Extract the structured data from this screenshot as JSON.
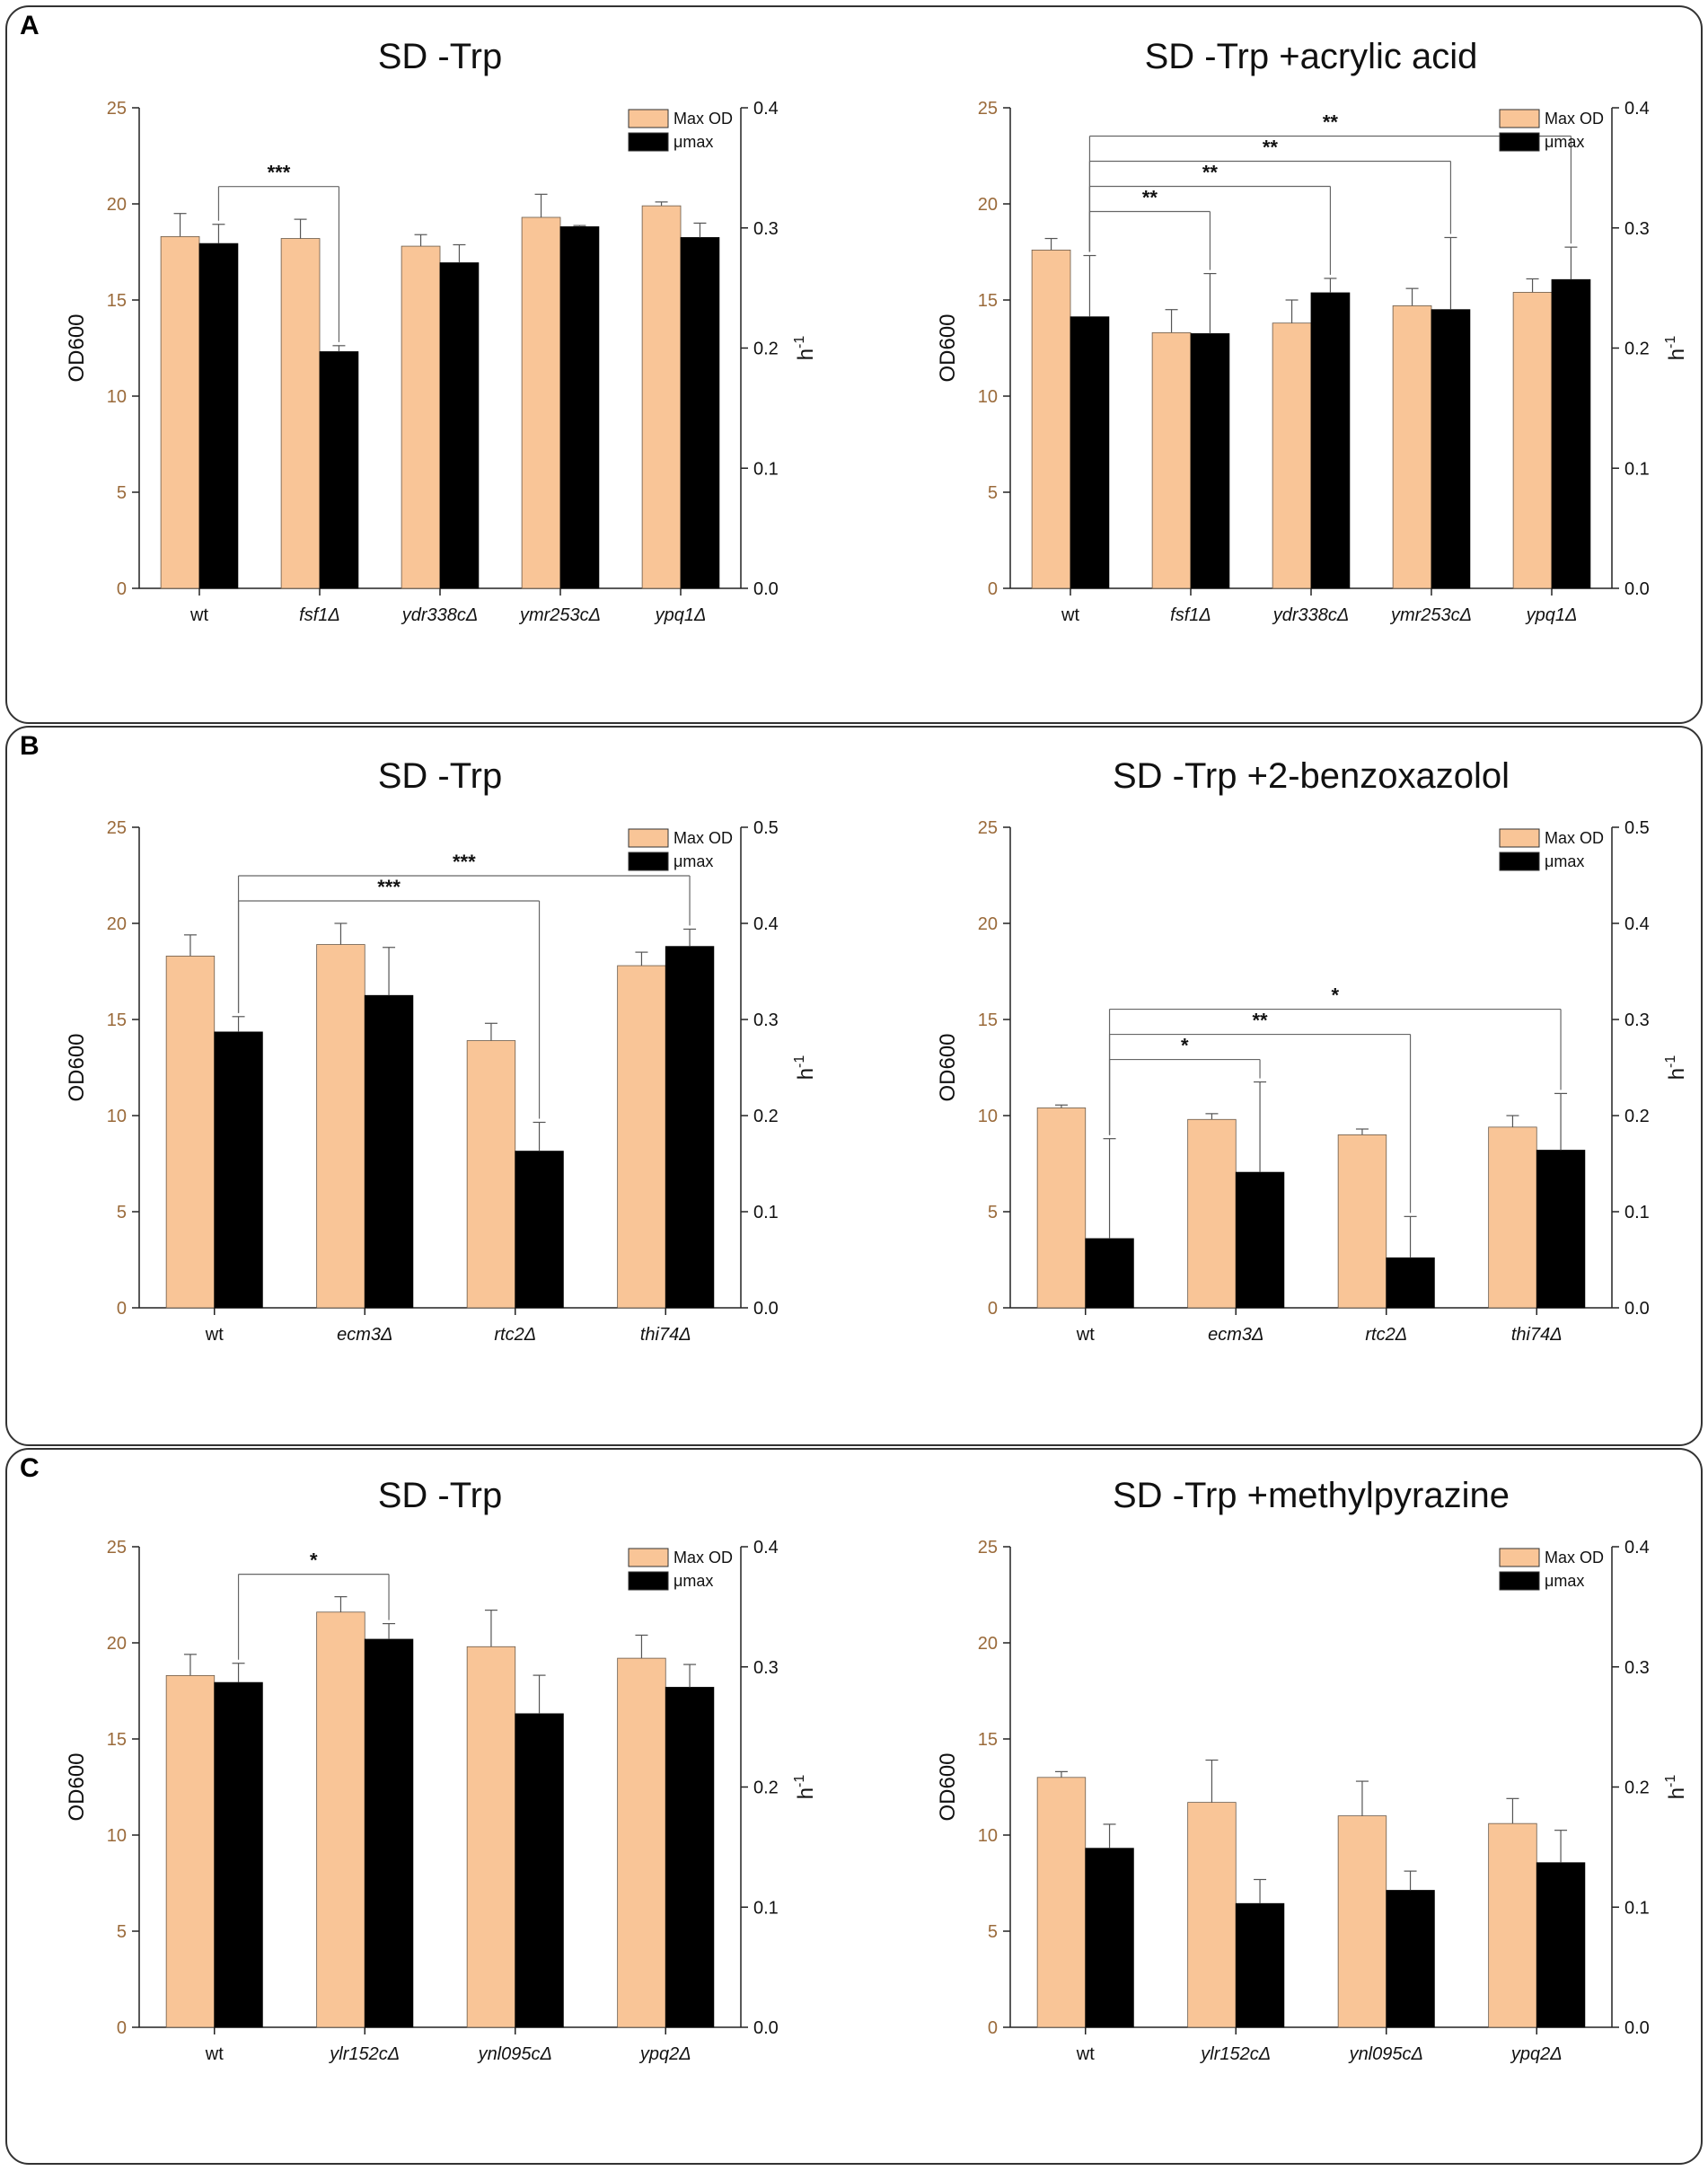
{
  "colors": {
    "max_od": "#f9c597",
    "mu_max": "#000000",
    "left_axis": "#9a6a3a",
    "frame": "#333333"
  },
  "panels": [
    "A",
    "B",
    "C"
  ],
  "chart_data": [
    {
      "type": "bar",
      "panel": "A",
      "title": "SD -Trp",
      "categories": [
        "wt",
        "fsf1Δ",
        "ydr338cΔ",
        "ymr253cΔ",
        "ypq1Δ"
      ],
      "italic_categories": [
        false,
        true,
        true,
        true,
        true
      ],
      "ylabel": "OD600",
      "ylabel_right": "h",
      "ylabel_right_exp": "-1",
      "ylim": [
        0,
        25
      ],
      "yticks": [
        "0",
        "5",
        "10",
        "15",
        "20",
        "25"
      ],
      "y2lim": [
        0,
        0.4
      ],
      "y2ticks": [
        "0.0",
        "0.1",
        "0.2",
        "0.3",
        "0.4"
      ],
      "legend": [
        "Max OD",
        "μmax"
      ],
      "series": [
        {
          "name": "Max OD",
          "axis": "left",
          "values": [
            18.3,
            18.2,
            17.8,
            19.3,
            19.9
          ],
          "errors": [
            1.2,
            1.0,
            0.6,
            1.2,
            0.2
          ]
        },
        {
          "name": "μmax",
          "axis": "right",
          "values": [
            0.287,
            0.197,
            0.271,
            0.301,
            0.292
          ],
          "errors": [
            0.016,
            0.005,
            0.015,
            0.001,
            0.012
          ]
        }
      ],
      "significance": [
        {
          "from": 0,
          "to": 1,
          "label": "***"
        }
      ]
    },
    {
      "type": "bar",
      "panel": "A",
      "title": "SD -Trp +acrylic acid",
      "categories": [
        "wt",
        "fsf1Δ",
        "ydr338cΔ",
        "ymr253cΔ",
        "ypq1Δ"
      ],
      "italic_categories": [
        false,
        true,
        true,
        true,
        true
      ],
      "ylabel": "OD600",
      "ylabel_right": "h",
      "ylabel_right_exp": "-1",
      "ylim": [
        0,
        25
      ],
      "yticks": [
        "0",
        "5",
        "10",
        "15",
        "20",
        "25"
      ],
      "y2lim": [
        0,
        0.4
      ],
      "y2ticks": [
        "0.0",
        "0.1",
        "0.2",
        "0.3",
        "0.4"
      ],
      "legend": [
        "Max OD",
        "μmax"
      ],
      "series": [
        {
          "name": "Max OD",
          "axis": "left",
          "values": [
            17.6,
            13.3,
            13.8,
            14.7,
            15.4
          ],
          "errors": [
            0.6,
            1.2,
            1.2,
            0.9,
            0.7
          ]
        },
        {
          "name": "μmax",
          "axis": "right",
          "values": [
            0.226,
            0.212,
            0.246,
            0.232,
            0.257
          ],
          "errors": [
            0.051,
            0.05,
            0.012,
            0.06,
            0.027
          ]
        }
      ],
      "significance": [
        {
          "from": 0,
          "to": 1,
          "label": "**"
        },
        {
          "from": 0,
          "to": 2,
          "label": "**"
        },
        {
          "from": 0,
          "to": 4,
          "label": "**"
        },
        {
          "from": 0,
          "to": 3,
          "label": "**"
        }
      ]
    },
    {
      "type": "bar",
      "panel": "B",
      "title": "SD -Trp",
      "categories": [
        "wt",
        "ecm3Δ",
        "rtc2Δ",
        "thi74Δ"
      ],
      "italic_categories": [
        false,
        true,
        true,
        true
      ],
      "ylabel": "OD600",
      "ylabel_right": "h",
      "ylabel_right_exp": "-1",
      "ylim": [
        0,
        25
      ],
      "yticks": [
        "0",
        "5",
        "10",
        "15",
        "20",
        "25"
      ],
      "y2lim": [
        0,
        0.5
      ],
      "y2ticks": [
        "0.0",
        "0.1",
        "0.2",
        "0.3",
        "0.4",
        "0.5"
      ],
      "legend": [
        "Max OD",
        "μmax"
      ],
      "series": [
        {
          "name": "Max OD",
          "axis": "left",
          "values": [
            18.3,
            18.9,
            13.9,
            17.8
          ],
          "errors": [
            1.1,
            1.1,
            0.9,
            0.7
          ]
        },
        {
          "name": "μmax",
          "axis": "right",
          "values": [
            0.287,
            0.325,
            0.163,
            0.376
          ],
          "errors": [
            0.016,
            0.05,
            0.03,
            0.018
          ]
        }
      ],
      "significance": [
        {
          "from": 0,
          "to": 2,
          "label": "***"
        },
        {
          "from": 0,
          "to": 3,
          "label": "***"
        }
      ]
    },
    {
      "type": "bar",
      "panel": "B",
      "title": "SD -Trp +2-benzoxazolol",
      "categories": [
        "wt",
        "ecm3Δ",
        "rtc2Δ",
        "thi74Δ"
      ],
      "italic_categories": [
        false,
        true,
        true,
        true
      ],
      "ylabel": "OD600",
      "ylabel_right": "h",
      "ylabel_right_exp": "-1",
      "ylim": [
        0,
        25
      ],
      "yticks": [
        "0",
        "5",
        "10",
        "15",
        "20",
        "25"
      ],
      "y2lim": [
        0,
        0.5
      ],
      "y2ticks": [
        "0.0",
        "0.1",
        "0.2",
        "0.3",
        "0.4",
        "0.5"
      ],
      "legend": [
        "Max OD",
        "μmax"
      ],
      "series": [
        {
          "name": "Max OD",
          "axis": "left",
          "values": [
            10.4,
            9.8,
            9.0,
            9.4
          ],
          "errors": [
            0.15,
            0.3,
            0.3,
            0.6
          ]
        },
        {
          "name": "μmax",
          "axis": "right",
          "values": [
            0.072,
            0.141,
            0.052,
            0.164
          ],
          "errors": [
            0.104,
            0.094,
            0.043,
            0.059
          ]
        }
      ],
      "significance": [
        {
          "from": 0,
          "to": 1,
          "label": "*"
        },
        {
          "from": 0,
          "to": 2,
          "label": "**"
        },
        {
          "from": 0,
          "to": 3,
          "label": "*"
        }
      ]
    },
    {
      "type": "bar",
      "panel": "C",
      "title": "SD -Trp",
      "categories": [
        "wt",
        "ylr152cΔ",
        "ynl095cΔ",
        "ypq2Δ"
      ],
      "italic_categories": [
        false,
        true,
        true,
        true
      ],
      "ylabel": "OD600",
      "ylabel_right": "h",
      "ylabel_right_exp": "-1",
      "ylim": [
        0,
        25
      ],
      "yticks": [
        "0",
        "5",
        "10",
        "15",
        "20",
        "25"
      ],
      "y2lim": [
        0,
        0.4
      ],
      "y2ticks": [
        "0.0",
        "0.1",
        "0.2",
        "0.3",
        "0.4"
      ],
      "legend": [
        "Max OD",
        "μmax"
      ],
      "series": [
        {
          "name": "Max OD",
          "axis": "left",
          "values": [
            18.3,
            21.6,
            19.8,
            19.2
          ],
          "errors": [
            1.1,
            0.8,
            1.9,
            1.2
          ]
        },
        {
          "name": "μmax",
          "axis": "right",
          "values": [
            0.287,
            0.323,
            0.261,
            0.283
          ],
          "errors": [
            0.016,
            0.013,
            0.032,
            0.019
          ]
        }
      ],
      "significance": [
        {
          "from": 0,
          "to": 1,
          "label": "*"
        }
      ]
    },
    {
      "type": "bar",
      "panel": "C",
      "title": "SD -Trp +methylpyrazine",
      "categories": [
        "wt",
        "ylr152cΔ",
        "ynl095cΔ",
        "ypq2Δ"
      ],
      "italic_categories": [
        false,
        true,
        true,
        true
      ],
      "ylabel": "OD600",
      "ylabel_right": "h",
      "ylabel_right_exp": "-1",
      "ylim": [
        0,
        25
      ],
      "yticks": [
        "0",
        "5",
        "10",
        "15",
        "20",
        "25"
      ],
      "y2lim": [
        0,
        0.4
      ],
      "y2ticks": [
        "0.0",
        "0.1",
        "0.2",
        "0.3",
        "0.4"
      ],
      "legend": [
        "Max OD",
        "μmax"
      ],
      "series": [
        {
          "name": "Max OD",
          "axis": "left",
          "values": [
            13.0,
            11.7,
            11.0,
            10.6
          ],
          "errors": [
            0.3,
            2.2,
            1.8,
            1.3
          ]
        },
        {
          "name": "μmax",
          "axis": "right",
          "values": [
            0.149,
            0.103,
            0.114,
            0.137
          ],
          "errors": [
            0.02,
            0.02,
            0.016,
            0.027
          ]
        }
      ],
      "significance": []
    }
  ]
}
